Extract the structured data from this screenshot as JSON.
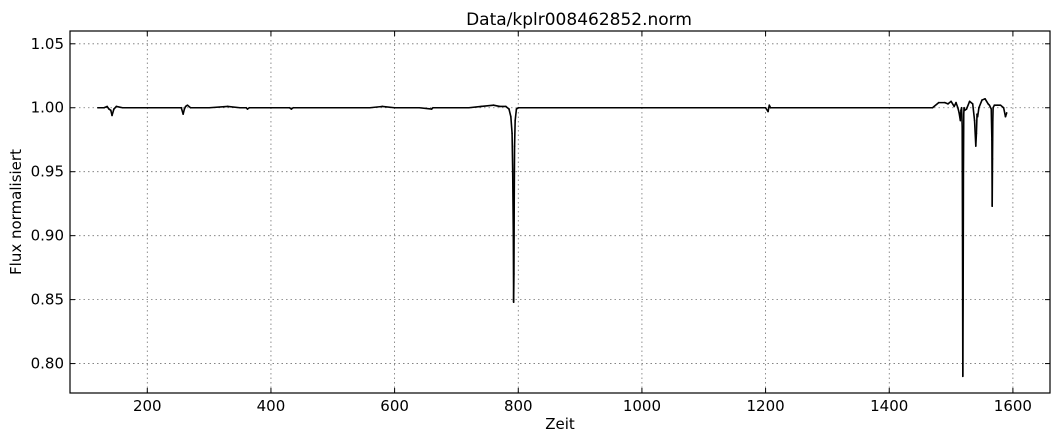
{
  "chart_data": {
    "type": "line",
    "title": "Data/kplr008462852.norm",
    "xlabel": "Zeit",
    "ylabel": "Flux normalisiert",
    "xlim": [
      75,
      1660
    ],
    "ylim": [
      0.777,
      1.06
    ],
    "xticks": [
      200,
      400,
      600,
      800,
      1000,
      1200,
      1400,
      1600
    ],
    "yticks": [
      0.8,
      0.85,
      0.9,
      0.95,
      1.0,
      1.05
    ],
    "ytick_labels": [
      "0.80",
      "0.85",
      "0.90",
      "0.95",
      "1.00",
      "1.05"
    ],
    "grid": true,
    "legend": "none",
    "line_color": "#000000",
    "series": [
      {
        "x": [
          120,
          130,
          135,
          138,
          141,
          143,
          146,
          150,
          160,
          180,
          200,
          220,
          240,
          255,
          258,
          260,
          262,
          265,
          270,
          300,
          330,
          350,
          360,
          362,
          365,
          400,
          420,
          430,
          433,
          436,
          460,
          500,
          520,
          560,
          580,
          600,
          640,
          660,
          662,
          665,
          700,
          720,
          740,
          760,
          770,
          780,
          785,
          788,
          790,
          791,
          792,
          792.5,
          793,
          793.5,
          794,
          795,
          797,
          800,
          810,
          850,
          900,
          950,
          1000,
          1050,
          1100,
          1150,
          1180,
          1200,
          1204,
          1206,
          1208,
          1210,
          1250,
          1300,
          1350,
          1400,
          1430,
          1460,
          1470,
          1480,
          1490,
          1495,
          1500,
          1505,
          1508,
          1511,
          1513,
          1515,
          1516,
          1517,
          1518,
          1518.5,
          1519,
          1519.5,
          1520,
          1520.5,
          1521,
          1522,
          1525,
          1530,
          1535,
          1538,
          1540,
          1541,
          1542,
          1543,
          1545,
          1550,
          1555,
          1560,
          1562,
          1565,
          1566,
          1566.5,
          1567,
          1567.5,
          1568,
          1570,
          1575,
          1580,
          1585,
          1588,
          1590
        ],
        "y": [
          1.0,
          1.0,
          1.001,
          0.999,
          0.998,
          0.994,
          0.999,
          1.001,
          1.0,
          1.0,
          1.0,
          1.0,
          1.0,
          1.0,
          0.995,
          0.999,
          1.001,
          1.002,
          1.0,
          1.0,
          1.001,
          1.0,
          1.0,
          0.999,
          1.0,
          1.0,
          1.0,
          1.0,
          0.999,
          1.0,
          1.0,
          1.0,
          1.0,
          1.0,
          1.001,
          1.0,
          1.0,
          0.999,
          1.0,
          1.0,
          1.0,
          1.0,
          1.001,
          1.002,
          1.001,
          1.001,
          0.999,
          0.993,
          0.98,
          0.95,
          0.9,
          0.848,
          0.87,
          0.93,
          0.97,
          0.99,
          0.999,
          1.0,
          1.0,
          1.0,
          1.0,
          1.0,
          1.0,
          1.0,
          1.0,
          1.0,
          1.0,
          1.0,
          0.997,
          1.002,
          1.0,
          1.0,
          1.0,
          1.0,
          1.0,
          1.0,
          1.0,
          1.0,
          1.0,
          1.004,
          1.004,
          1.003,
          1.005,
          1.001,
          1.004,
          1.0,
          0.996,
          0.99,
          0.998,
          1.0,
          0.985,
          0.9,
          0.79,
          0.85,
          0.95,
          0.995,
          1.0,
          0.998,
          0.999,
          1.005,
          1.003,
          0.99,
          0.97,
          0.98,
          0.995,
          0.993,
          1.0,
          1.006,
          1.007,
          1.003,
          1.002,
          0.999,
          0.975,
          0.923,
          0.96,
          0.99,
          1.0,
          1.002,
          1.002,
          1.002,
          1.0,
          0.993,
          0.996
        ]
      }
    ]
  }
}
